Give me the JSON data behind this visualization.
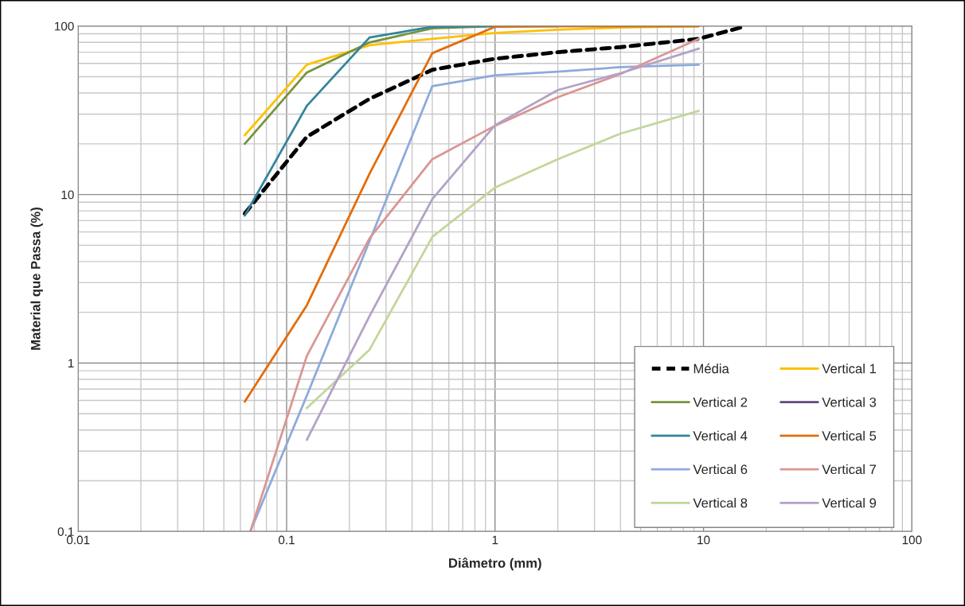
{
  "chart_data": {
    "type": "line",
    "xlabel": "Diâmetro (mm)",
    "ylabel": "Material que Passa (%)",
    "log": "xy",
    "xlim": [
      0.01,
      100
    ],
    "ylim": [
      0.1,
      100
    ],
    "xticks": [
      0.01,
      0.1,
      1,
      10,
      100
    ],
    "yticks": [
      0.1,
      1,
      10,
      100
    ],
    "grid": true,
    "legend": "bottom right",
    "series": [
      {
        "name": "Média",
        "color": "#000000",
        "line_style": "dashed",
        "x": [
          0.063,
          0.125,
          0.25,
          0.5,
          1,
          2,
          4,
          9.5,
          16
        ],
        "values": [
          7.7,
          22,
          37,
          55,
          64,
          70,
          75,
          84,
          100
        ]
      },
      {
        "name": "Vertical 1",
        "color": "#FFC000",
        "x": [
          0.063,
          0.125,
          0.25,
          0.5,
          1,
          2,
          4,
          9.5
        ],
        "values": [
          22.5,
          59,
          77,
          84,
          91,
          95,
          98,
          100
        ]
      },
      {
        "name": "Vertical 2",
        "color": "#77933C",
        "x": [
          0.063,
          0.125,
          0.25,
          0.5,
          1,
          2,
          4,
          9.5
        ],
        "values": [
          20,
          53,
          80,
          97,
          100,
          100,
          100,
          100
        ]
      },
      {
        "name": "Vertical 3",
        "color": "#604A7B"
      },
      {
        "name": "Vertical 4",
        "color": "#31859C",
        "x": [
          0.063,
          0.125,
          0.25,
          0.5,
          1,
          2
        ],
        "values": [
          7.5,
          33.6,
          85.5,
          99,
          100,
          100
        ]
      },
      {
        "name": "Vertical 5",
        "color": "#E46C0A",
        "x": [
          0.063,
          0.125,
          0.25,
          0.5,
          1,
          2,
          4,
          9.5
        ],
        "values": [
          0.59,
          2.2,
          13.3,
          69,
          99,
          100,
          100,
          100
        ]
      },
      {
        "name": "Vertical 6",
        "color": "#8EAADB",
        "x": [
          0.067,
          0.125,
          0.25,
          0.5,
          1,
          2,
          4,
          9.5
        ],
        "values": [
          0.1,
          0.64,
          5.3,
          44,
          51,
          53.6,
          57,
          59
        ]
      },
      {
        "name": "Vertical 7",
        "color": "#D99694",
        "x": [
          0.067,
          0.125,
          0.25,
          0.5,
          1,
          2,
          4,
          9.5
        ],
        "values": [
          0.1,
          1.1,
          5.5,
          16.2,
          25.6,
          37.8,
          52,
          84
        ]
      },
      {
        "name": "Vertical 8",
        "color": "#C3D69B",
        "x": [
          0.125,
          0.25,
          0.5,
          1,
          2,
          4,
          9.5
        ],
        "values": [
          0.54,
          1.2,
          5.6,
          11,
          16.2,
          23,
          31.4
        ]
      },
      {
        "name": "Vertical 9",
        "color": "#B3A2C7",
        "x": [
          0.125,
          0.25,
          0.5,
          1,
          2,
          4,
          9.5
        ],
        "values": [
          0.35,
          1.9,
          9.4,
          25.8,
          41.7,
          52.5,
          73.5
        ]
      }
    ]
  }
}
